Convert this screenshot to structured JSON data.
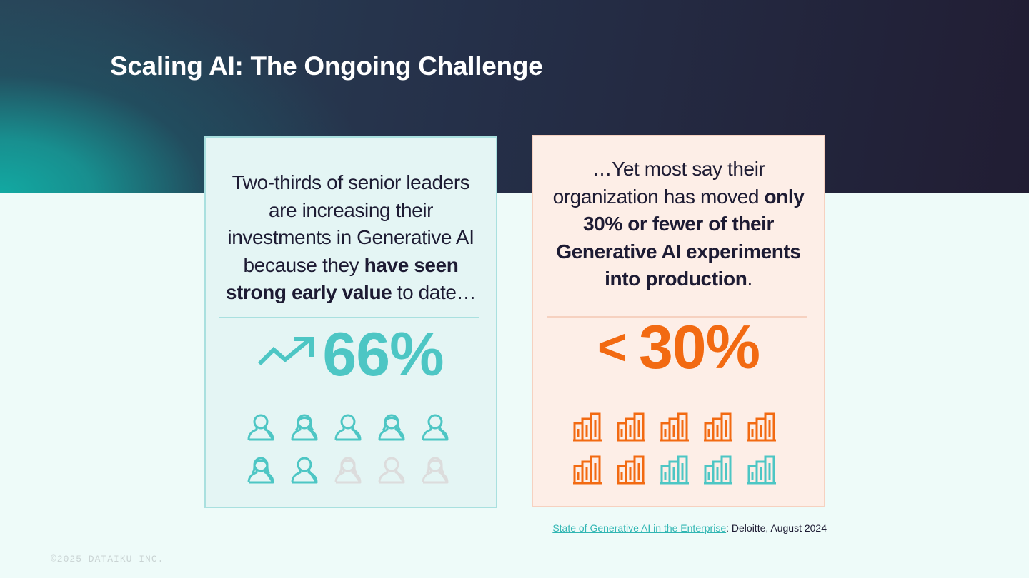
{
  "slide": {
    "title": "Scaling AI: The Ongoing Challenge",
    "copyright": "©2025 DATAIKU INC."
  },
  "left_card": {
    "text_plain_1": "Two-thirds of senior leaders are increasing their investments in Generative AI because they ",
    "text_bold": "have seen strong early value",
    "text_plain_2": " to date…",
    "stat_value": "66%",
    "stat_icon": "trending-up-icon",
    "accent_color": "#4dc6c4",
    "muted_color": "#dcdcdc",
    "icon_type": "person-icon",
    "icons_total": 10,
    "icons_highlighted": 7
  },
  "right_card": {
    "text_plain_1": "…Yet most say their organization has moved ",
    "text_bold": "only 30% or fewer of their Generative AI experiments into production",
    "text_plain_2": ".",
    "stat_prefix": "<",
    "stat_value": "30%",
    "accent_color": "#f26a12",
    "secondary_color": "#4dc6c4",
    "icon_type": "building-chart-icon",
    "icons_total": 10,
    "icons_highlighted": 7
  },
  "source": {
    "link_text": "State of Generative AI in the Enterprise",
    "rest_text": ": Deloitte, August 2024"
  }
}
